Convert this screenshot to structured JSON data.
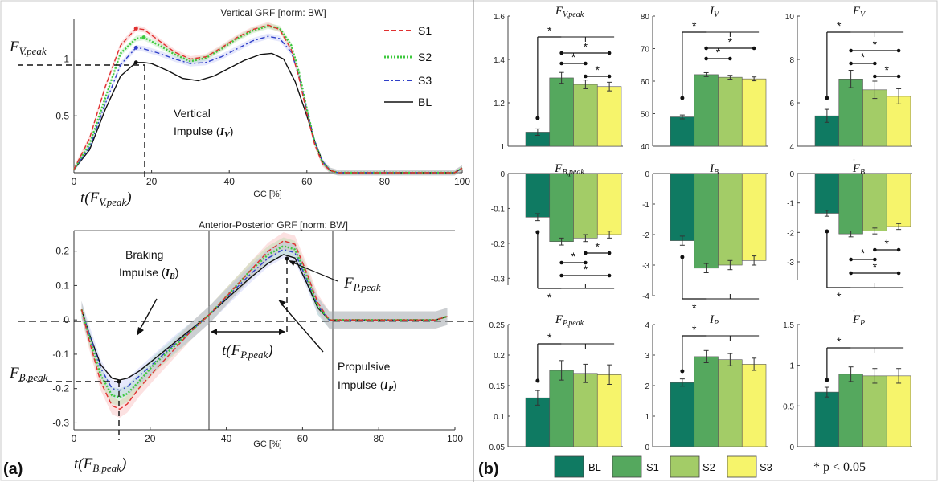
{
  "panel_a": {
    "label": "(a)",
    "vgrf": {
      "title": "Vertical GRF  [norm: BW]",
      "xlabel": "GC [%]",
      "xticks": [
        "0",
        "20",
        "40",
        "60",
        "80",
        "100"
      ],
      "yticks": [
        "0.5",
        "1"
      ],
      "legend": [
        "S1",
        "S2",
        "S3",
        "BL"
      ],
      "ann_peak": "F",
      "ann_peak_sub": "V.peak",
      "ann_impulse_1": "Vertical",
      "ann_impulse_2": "Impulse (",
      "ann_impulse_sym": "I",
      "ann_impulse_sub": "V",
      "ann_impulse_close": ")",
      "ann_t": "t(F",
      "ann_t_sub": "V.peak",
      "ann_t_close": ")"
    },
    "apgrf": {
      "title": "Anterior-Posterior GRF  [norm: BW]",
      "xlabel": "GC [%]",
      "xticks": [
        "0",
        "20",
        "40",
        "60",
        "80",
        "100"
      ],
      "yticks": [
        "-0.3",
        "-0.2",
        "-0.1",
        "0",
        "0.1",
        "0.2"
      ],
      "ann_braking_1": "Braking",
      "ann_braking_2": "Impulse (",
      "ann_braking_sym": "I",
      "ann_braking_sub": "B",
      "ann_braking_close": ")",
      "ann_fp": "F",
      "ann_fp_sub": "P.peak",
      "ann_tp": "t(F",
      "ann_tp_sub": "P.peak",
      "ann_tp_close": ")",
      "ann_prop_1": "Propulsive",
      "ann_prop_2": "Impulse (",
      "ann_prop_sym": "I",
      "ann_prop_sub": "P",
      "ann_prop_close": ")",
      "ann_fb": "F",
      "ann_fb_sub": "B.peak",
      "ann_tb": "t(F",
      "ann_tb_sub": "B.peak",
      "ann_tb_close": ")"
    }
  },
  "panel_b": {
    "label": "(b)",
    "legend": [
      "BL",
      "S1",
      "S2",
      "S3"
    ],
    "footnote": "* p < 0.05",
    "colors": {
      "BL": "#0f7a62",
      "S1": "#55a85e",
      "S2": "#a3cc67",
      "S3": "#f6f46b"
    }
  },
  "chart_data": [
    {
      "type": "line",
      "title": "Vertical GRF  [norm: BW]",
      "xlabel": "GC [%]",
      "xlim": [
        0,
        100
      ],
      "ylim": [
        0,
        1.35
      ],
      "series": [
        {
          "name": "S1",
          "color": "#e03030",
          "x": [
            0,
            4,
            8,
            12,
            16,
            18,
            22,
            26,
            30,
            34,
            38,
            42,
            46,
            50,
            53,
            56,
            58,
            60,
            62,
            64,
            66,
            68,
            80,
            90,
            98,
            100
          ],
          "y": [
            0.03,
            0.3,
            0.75,
            1.12,
            1.27,
            1.26,
            1.16,
            1.06,
            1.0,
            1.02,
            1.1,
            1.19,
            1.26,
            1.3,
            1.26,
            1.08,
            0.83,
            0.52,
            0.25,
            0.08,
            0.02,
            0.0,
            0.0,
            0.0,
            0.0,
            0.04
          ]
        },
        {
          "name": "S2",
          "color": "#3ec83e",
          "x": [
            0,
            4,
            8,
            12,
            16,
            18,
            22,
            26,
            30,
            34,
            38,
            42,
            46,
            50,
            53,
            56,
            58,
            60,
            62,
            64,
            66,
            68,
            80,
            90,
            98,
            100
          ],
          "y": [
            0.03,
            0.25,
            0.65,
            1.05,
            1.18,
            1.19,
            1.12,
            1.04,
            0.98,
            1.01,
            1.09,
            1.18,
            1.25,
            1.29,
            1.27,
            1.12,
            0.88,
            0.56,
            0.27,
            0.09,
            0.02,
            0.0,
            0.0,
            0.0,
            0.0,
            0.04
          ]
        },
        {
          "name": "S3",
          "color": "#3040c8",
          "x": [
            0,
            4,
            8,
            12,
            16,
            18,
            22,
            26,
            30,
            34,
            38,
            42,
            46,
            50,
            53,
            56,
            58,
            60,
            62,
            64,
            66,
            68,
            80,
            90,
            98,
            100
          ],
          "y": [
            0.03,
            0.22,
            0.6,
            0.95,
            1.1,
            1.09,
            1.05,
            1.0,
            0.96,
            0.97,
            1.02,
            1.09,
            1.16,
            1.2,
            1.18,
            1.06,
            0.85,
            0.55,
            0.28,
            0.1,
            0.02,
            0.0,
            0.0,
            0.0,
            0.0,
            0.04
          ]
        },
        {
          "name": "BL",
          "color": "#111111",
          "x": [
            0,
            4,
            8,
            12,
            16,
            18,
            20,
            24,
            28,
            32,
            36,
            40,
            44,
            48,
            51,
            54,
            57,
            60,
            62,
            64,
            66,
            68,
            80,
            90,
            98,
            100
          ],
          "y": [
            0.03,
            0.2,
            0.55,
            0.85,
            0.97,
            0.97,
            0.96,
            0.9,
            0.83,
            0.81,
            0.85,
            0.92,
            0.99,
            1.04,
            1.05,
            1.0,
            0.8,
            0.5,
            0.28,
            0.1,
            0.02,
            0.0,
            0.0,
            0.0,
            0.0,
            0.04
          ]
        }
      ]
    },
    {
      "type": "line",
      "title": "Anterior-Posterior GRF  [norm: BW]",
      "xlabel": "GC [%]",
      "xlim": [
        0,
        100
      ],
      "ylim": [
        -0.32,
        0.26
      ],
      "series": [
        {
          "name": "S1",
          "color": "#e03030",
          "x": [
            2,
            4,
            7,
            10,
            12,
            14,
            17,
            21,
            26,
            31,
            36,
            41,
            46,
            51,
            55,
            58,
            61,
            64,
            67,
            70,
            80,
            90,
            95,
            98
          ],
          "y": [
            0.03,
            -0.06,
            -0.18,
            -0.25,
            -0.26,
            -0.245,
            -0.2,
            -0.15,
            -0.09,
            -0.03,
            0.02,
            0.08,
            0.14,
            0.2,
            0.23,
            0.22,
            0.14,
            0.05,
            0.0,
            0.0,
            0.0,
            0.0,
            0.0,
            0.01
          ]
        },
        {
          "name": "S2",
          "color": "#3ec83e",
          "x": [
            2,
            4,
            7,
            10,
            12,
            14,
            17,
            21,
            26,
            31,
            36,
            41,
            46,
            51,
            55,
            58,
            61,
            64,
            67,
            70,
            80,
            90,
            95,
            98
          ],
          "y": [
            0.03,
            -0.05,
            -0.16,
            -0.22,
            -0.225,
            -0.215,
            -0.18,
            -0.13,
            -0.08,
            -0.03,
            0.02,
            0.08,
            0.14,
            0.19,
            0.215,
            0.205,
            0.13,
            0.04,
            0.0,
            0.0,
            0.0,
            0.0,
            0.0,
            0.01
          ]
        },
        {
          "name": "S3",
          "color": "#3040c8",
          "x": [
            2,
            4,
            7,
            10,
            12,
            14,
            17,
            21,
            26,
            31,
            36,
            41,
            46,
            51,
            55,
            58,
            61,
            64,
            67,
            70,
            80,
            90,
            95,
            98
          ],
          "y": [
            0.03,
            -0.04,
            -0.14,
            -0.2,
            -0.205,
            -0.195,
            -0.165,
            -0.125,
            -0.075,
            -0.03,
            0.02,
            0.075,
            0.13,
            0.18,
            0.205,
            0.195,
            0.12,
            0.04,
            0.0,
            0.0,
            0.0,
            0.0,
            0.0,
            0.01
          ]
        },
        {
          "name": "BL",
          "color": "#111111",
          "x": [
            2,
            4,
            7,
            10,
            12,
            14,
            17,
            21,
            26,
            31,
            36,
            41,
            46,
            51,
            55,
            58,
            61,
            64,
            67,
            70,
            80,
            90,
            95,
            98
          ],
          "y": [
            0.03,
            -0.04,
            -0.13,
            -0.17,
            -0.175,
            -0.17,
            -0.15,
            -0.115,
            -0.07,
            -0.025,
            0.02,
            0.07,
            0.12,
            0.165,
            0.19,
            0.18,
            0.11,
            0.035,
            0.0,
            0.0,
            0.0,
            0.0,
            0.0,
            0.01
          ]
        }
      ]
    },
    {
      "type": "bar",
      "title": "F_V.peak",
      "categories": [
        "BL",
        "S1",
        "S2",
        "S3"
      ],
      "values": [
        1.065,
        1.315,
        1.285,
        1.275
      ],
      "errors": [
        0.015,
        0.025,
        0.02,
        0.02
      ],
      "ylim": [
        1,
        1.6
      ],
      "yticks": [
        "1",
        "1.2",
        "1.4",
        "1.6"
      ]
    },
    {
      "type": "bar",
      "title": "I_V",
      "categories": [
        "BL",
        "S1",
        "S2",
        "S3"
      ],
      "values": [
        49,
        62,
        61.2,
        60.7
      ],
      "errors": [
        0.6,
        0.6,
        0.6,
        0.6
      ],
      "ylim": [
        40,
        80
      ],
      "yticks": [
        "40",
        "50",
        "60",
        "70",
        "80"
      ]
    },
    {
      "type": "bar",
      "title": "Ḟ_V",
      "categories": [
        "BL",
        "S1",
        "S2",
        "S3"
      ],
      "values": [
        5.4,
        7.1,
        6.6,
        6.3
      ],
      "errors": [
        0.3,
        0.4,
        0.4,
        0.35
      ],
      "ylim": [
        4,
        10
      ],
      "yticks": [
        "4",
        "6",
        "8",
        "10"
      ]
    },
    {
      "type": "bar",
      "title": "F_B.peak",
      "categories": [
        "BL",
        "S1",
        "S2",
        "S3"
      ],
      "values": [
        -0.125,
        -0.195,
        -0.185,
        -0.175
      ],
      "errors": [
        0.01,
        0.01,
        0.01,
        0.01
      ],
      "ylim": [
        -0.32,
        0
      ],
      "yticks": [
        "-0.3",
        "-0.2",
        "-0.1",
        "0"
      ]
    },
    {
      "type": "bar",
      "title": "I_B",
      "categories": [
        "BL",
        "S1",
        "S2",
        "S3"
      ],
      "values": [
        -2.2,
        -3.1,
        -3.0,
        -2.85
      ],
      "errors": [
        0.15,
        0.15,
        0.15,
        0.15
      ],
      "ylim": [
        -4,
        0
      ],
      "yticks": [
        "-4",
        "-3",
        "-2",
        "-1",
        "0"
      ]
    },
    {
      "type": "bar",
      "title": "Ḟ_B",
      "categories": [
        "BL",
        "S1",
        "S2",
        "S3"
      ],
      "values": [
        -1.35,
        -2.05,
        -1.95,
        -1.8
      ],
      "errors": [
        0.1,
        0.1,
        0.1,
        0.1
      ],
      "ylim": [
        -3.6,
        0
      ],
      "yticks": [
        "-3",
        "-2",
        "-1",
        "0"
      ]
    },
    {
      "type": "bar",
      "title": "F_P.peak",
      "categories": [
        "BL",
        "S1",
        "S2",
        "S3"
      ],
      "values": [
        0.13,
        0.175,
        0.17,
        0.168
      ],
      "errors": [
        0.012,
        0.016,
        0.015,
        0.016
      ],
      "ylim": [
        0.05,
        0.25
      ],
      "yticks": [
        "0.05",
        "0.1",
        "0.15",
        "0.2",
        "0.25"
      ]
    },
    {
      "type": "bar",
      "title": "I_P",
      "categories": [
        "BL",
        "S1",
        "S2",
        "S3"
      ],
      "values": [
        2.1,
        2.95,
        2.85,
        2.7
      ],
      "errors": [
        0.12,
        0.2,
        0.2,
        0.2
      ],
      "ylim": [
        0,
        4
      ],
      "yticks": [
        "0",
        "1",
        "2",
        "3",
        "4"
      ]
    },
    {
      "type": "bar",
      "title": "Ḟ_P",
      "categories": [
        "BL",
        "S1",
        "S2",
        "S3"
      ],
      "values": [
        0.67,
        0.89,
        0.87,
        0.87
      ],
      "errors": [
        0.06,
        0.09,
        0.09,
        0.09
      ],
      "ylim": [
        0,
        1.5
      ],
      "yticks": [
        "0",
        "0.5",
        "1",
        "1.5"
      ]
    }
  ]
}
